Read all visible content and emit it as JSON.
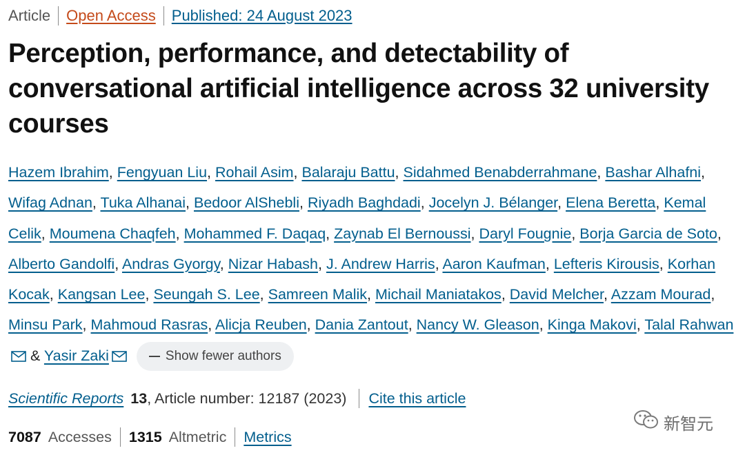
{
  "header": {
    "article_type": "Article",
    "open_access": "Open Access",
    "published": "Published: 24 August 2023"
  },
  "title": "Perception, performance, and detectability of conversational artificial intelligence across 32 university courses",
  "authors": {
    "names": [
      "Hazem Ibrahim",
      "Fengyuan Liu",
      "Rohail Asim",
      "Balaraju Battu",
      "Sidahmed Benabderrahmane",
      "Bashar Alhafni",
      "Wifag Adnan",
      "Tuka Alhanai",
      "Bedoor AlShebli",
      "Riyadh Baghdadi",
      "Jocelyn J. Bélanger",
      "Elena Beretta",
      "Kemal Celik",
      "Moumena Chaqfeh",
      "Mohammed F. Daqaq",
      "Zaynab El Bernoussi",
      "Daryl Fougnie",
      "Borja Garcia de Soto",
      "Alberto Gandolfi",
      "Andras Gyorgy",
      "Nizar Habash",
      "J. Andrew Harris",
      "Aaron Kaufman",
      "Lefteris Kirousis",
      "Korhan Kocak",
      "Kangsan Lee",
      "Seungah S. Lee",
      "Samreen Malik",
      "Michail Maniatakos",
      "David Melcher",
      "Azzam Mourad",
      "Minsu Park",
      "Mahmoud Rasras",
      "Alicja Reuben",
      "Dania Zantout",
      "Nancy W. Gleason",
      "Kinga Makovi",
      "Talal Rahwan",
      "Yasir Zaki"
    ],
    "separator": ",",
    "conjunction": "&",
    "show_fewer_label": "Show fewer authors",
    "contact_icon": "envelope-icon"
  },
  "citation": {
    "journal": "Scientific Reports",
    "volume": "13",
    "article_number": ", Article number: 12187 (2023)",
    "cite_label": "Cite this article"
  },
  "metrics": {
    "accesses_count": "7087",
    "accesses_label": "Accesses",
    "altmetric_count": "1315",
    "altmetric_label": "Altmetric",
    "metrics_link": "Metrics"
  },
  "watermark": {
    "text": "新智元",
    "icon": "wechat-logo-icon"
  },
  "colors": {
    "link": "#025e8d",
    "open_access": "#c44a1a",
    "pill_bg": "#eef0f2"
  }
}
